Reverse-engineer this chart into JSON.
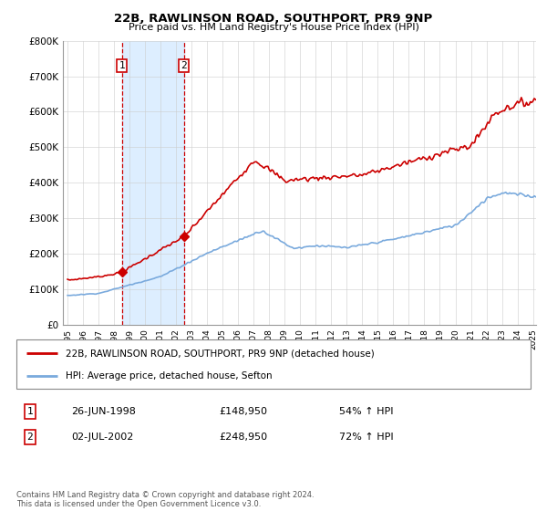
{
  "title": "22B, RAWLINSON ROAD, SOUTHPORT, PR9 9NP",
  "subtitle": "Price paid vs. HM Land Registry's House Price Index (HPI)",
  "legend_line1": "22B, RAWLINSON ROAD, SOUTHPORT, PR9 9NP (detached house)",
  "legend_line2": "HPI: Average price, detached house, Sefton",
  "transaction1_date": "26-JUN-1998",
  "transaction1_price": "£148,950",
  "transaction1_hpi": "54% ↑ HPI",
  "transaction2_date": "02-JUL-2002",
  "transaction2_price": "£248,950",
  "transaction2_hpi": "72% ↑ HPI",
  "footnote": "Contains HM Land Registry data © Crown copyright and database right 2024.\nThis data is licensed under the Open Government Licence v3.0.",
  "property_color": "#cc0000",
  "hpi_color": "#7aaadd",
  "shaded_region_color": "#ddeeff",
  "ylim_max": 800000,
  "yticks": [
    0,
    100000,
    200000,
    300000,
    400000,
    500000,
    600000,
    700000,
    800000
  ],
  "ytick_labels": [
    "£0",
    "£100K",
    "£200K",
    "£300K",
    "£400K",
    "£500K",
    "£600K",
    "£700K",
    "£800K"
  ],
  "transaction1_x": 1998.5,
  "transaction1_y": 148950,
  "transaction2_x": 2002.5,
  "transaction2_y": 248950,
  "shade_x1": 1998.5,
  "shade_x2": 2002.5,
  "xmin": 1995.0,
  "xmax": 2025.2
}
